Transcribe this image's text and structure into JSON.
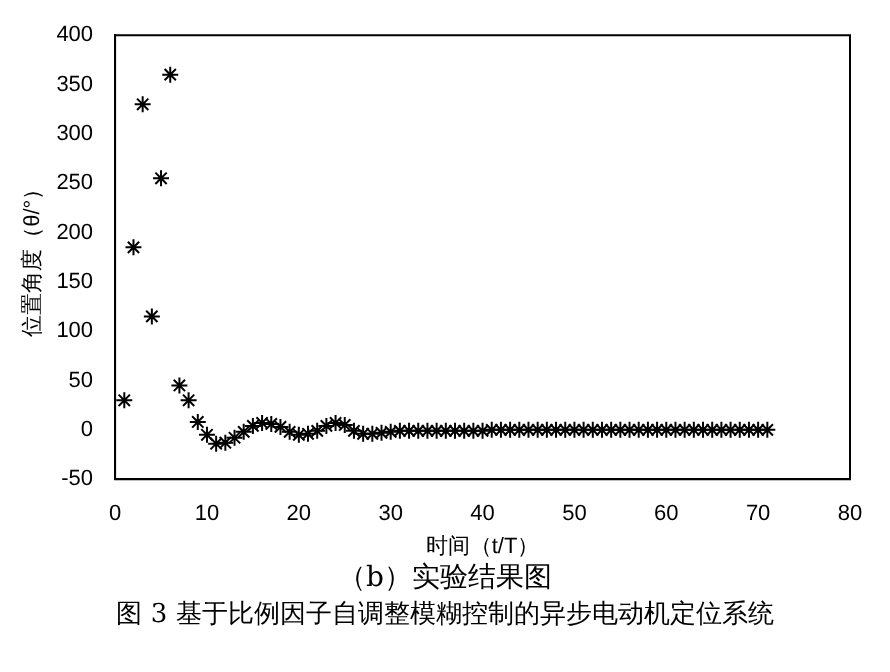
{
  "chart_data": {
    "type": "scatter",
    "subtitle": "（b）实验结果图",
    "annotations": [
      "图 3 基于比例因子自调整模糊控制的异步电动机定位系统"
    ],
    "xlabel": "时间（t/T）",
    "ylabel": "位置角度（θ/°）",
    "x": [
      1,
      2,
      3,
      4,
      5,
      6,
      7,
      8,
      9,
      10,
      11,
      12,
      13,
      14,
      15,
      16,
      17,
      18,
      19,
      20,
      21,
      22,
      23,
      24,
      25,
      26,
      27,
      28,
      29,
      30,
      31,
      32,
      33,
      34,
      35,
      36,
      37,
      38,
      39,
      40,
      41,
      42,
      43,
      44,
      45,
      46,
      47,
      48,
      49,
      50,
      51,
      52,
      53,
      54,
      55,
      56,
      57,
      58,
      59,
      60,
      61,
      62,
      63,
      64,
      65,
      66,
      67,
      68,
      69,
      70,
      71
    ],
    "series": [
      {
        "color": "#000000",
        "values": [
          30,
          185,
          330,
          115,
          255,
          360,
          45,
          30,
          8,
          -5,
          -14,
          -13,
          -8,
          -2,
          4,
          7,
          6,
          3,
          -2,
          -5,
          -4,
          -1,
          4,
          7,
          5,
          -1,
          -4,
          -4,
          -3,
          -2,
          -1,
          -1,
          -1,
          -1,
          -1,
          -1,
          -1,
          -1,
          -1,
          -1,
          0,
          0,
          0,
          0,
          0,
          0,
          0,
          0,
          0,
          0,
          0,
          0,
          0,
          0,
          0,
          0,
          0,
          0,
          0,
          0,
          0,
          0,
          0,
          0,
          0,
          0,
          0,
          0,
          0,
          0,
          0
        ]
      }
    ],
    "xlim": [
      0,
      80
    ],
    "xticks": [
      0,
      10,
      20,
      30,
      40,
      50,
      60,
      70,
      80
    ],
    "ylim": [
      -50,
      400
    ],
    "yticks": [
      -50,
      0,
      50,
      100,
      150,
      200,
      250,
      300,
      350,
      400
    ],
    "grid": false,
    "legend": false,
    "marker": "cross"
  }
}
